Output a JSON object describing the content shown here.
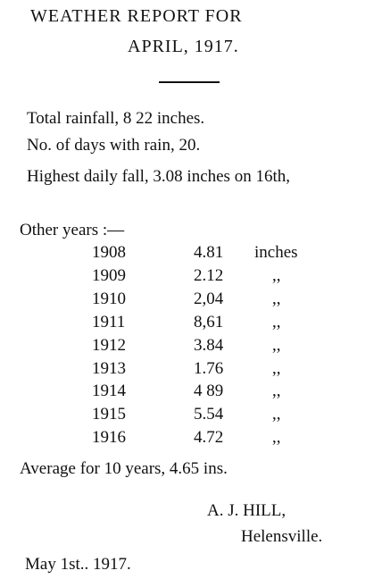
{
  "header": {
    "title": "WEATHER REPORT FOR",
    "subtitle": "APRIL, 1917."
  },
  "summary": [
    "Total rainfall, 8 22 inches.",
    "No. of days with rain, 20.",
    "Highest daily fall, 3.08 inches on 16th,"
  ],
  "table": {
    "heading": "Other years :—",
    "rows": [
      [
        "1908",
        "4.81",
        "inches"
      ],
      [
        "1909",
        "2.12",
        ",,"
      ],
      [
        "1910",
        "2,04",
        ",,"
      ],
      [
        "1911",
        "8,61",
        ",,"
      ],
      [
        "1912",
        "3.84",
        ",,"
      ],
      [
        "1913",
        "1.76",
        ",,"
      ],
      [
        "1914",
        "4 89",
        ",,"
      ],
      [
        "1915",
        "5.54",
        ",,"
      ],
      [
        "1916",
        "4.72",
        ",,"
      ]
    ]
  },
  "average": "Average for 10 years, 4.65 ins.",
  "signature": {
    "name": "A. J. HILL,",
    "place": "Helensville."
  },
  "date": "May 1st.. 1917."
}
